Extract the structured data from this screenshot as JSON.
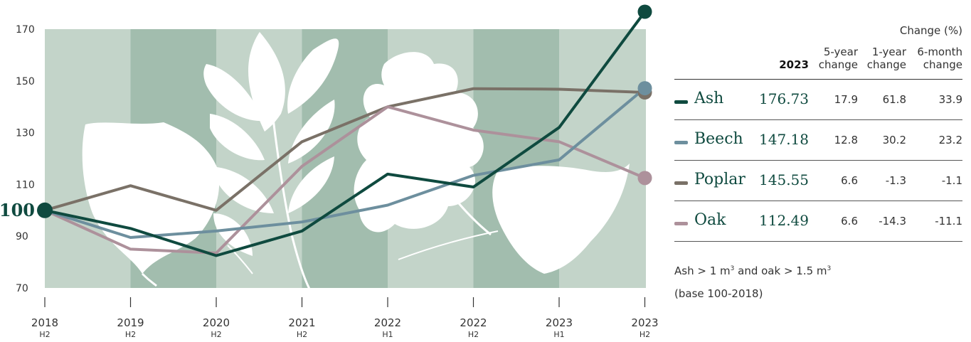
{
  "chart_data": {
    "type": "line",
    "x_labels": [
      {
        "year": "2018",
        "half": "H2"
      },
      {
        "year": "2019",
        "half": "H2"
      },
      {
        "year": "2020",
        "half": "H2"
      },
      {
        "year": "2021",
        "half": "H2"
      },
      {
        "year": "2022",
        "half": "H1"
      },
      {
        "year": "2022",
        "half": "H2"
      },
      {
        "year": "2023",
        "half": "H1"
      },
      {
        "year": "2023",
        "half": "H2"
      }
    ],
    "yticks": [
      70,
      90,
      110,
      130,
      150,
      170
    ],
    "ylim": [
      70,
      170
    ],
    "base_label": "100",
    "series": [
      {
        "name": "Ash",
        "color": "#0f4a3f",
        "values": [
          100,
          93,
          82.5,
          92,
          114,
          109,
          132,
          176.73
        ]
      },
      {
        "name": "Beech",
        "color": "#6d8f9e",
        "values": [
          100,
          89.5,
          92,
          95.5,
          102,
          113.5,
          119.5,
          147.18
        ]
      },
      {
        "name": "Poplar",
        "color": "#7a7167",
        "values": [
          100,
          109.5,
          100,
          126.5,
          140,
          147,
          146.8,
          145.55
        ]
      },
      {
        "name": "Oak",
        "color": "#ad919b",
        "values": [
          100,
          85,
          83.5,
          117,
          140,
          131,
          126.5,
          112.49
        ]
      }
    ],
    "grid": false,
    "legend": "right table"
  },
  "table": {
    "group_header": "Change (%)",
    "columns": [
      {
        "line1": "",
        "line2": "2023"
      },
      {
        "line1": "5-year",
        "line2": "change"
      },
      {
        "line1": "1-year",
        "line2": "change"
      },
      {
        "line1": "6-month",
        "line2": "change"
      }
    ],
    "rows": [
      {
        "name": "Ash",
        "color": "#0f4a3f",
        "v2023": "176.73",
        "c5": "17.9",
        "c1": "61.8",
        "c6": "33.9"
      },
      {
        "name": "Beech",
        "color": "#6d8f9e",
        "v2023": "147.18",
        "c5": "12.8",
        "c1": "30.2",
        "c6": "23.2"
      },
      {
        "name": "Poplar",
        "color": "#7a7167",
        "v2023": "145.55",
        "c5": "6.6",
        "c1": "-1.3",
        "c6": "-1.1"
      },
      {
        "name": "Oak",
        "color": "#ad919b",
        "v2023": "112.49",
        "c5": "6.6",
        "c1": "-14.3",
        "c6": "-11.1"
      }
    ]
  },
  "notes": {
    "line1_a": "Ash > 1 m",
    "line1_sup1": "3",
    "line1_b": " and oak > 1.5 m",
    "line1_sup2": "3",
    "line2": "(base 100-2018)"
  },
  "colors": {
    "band_light": "#c3d4c9",
    "band_dark": "#a2bdae",
    "leaf": "#ffffff"
  }
}
